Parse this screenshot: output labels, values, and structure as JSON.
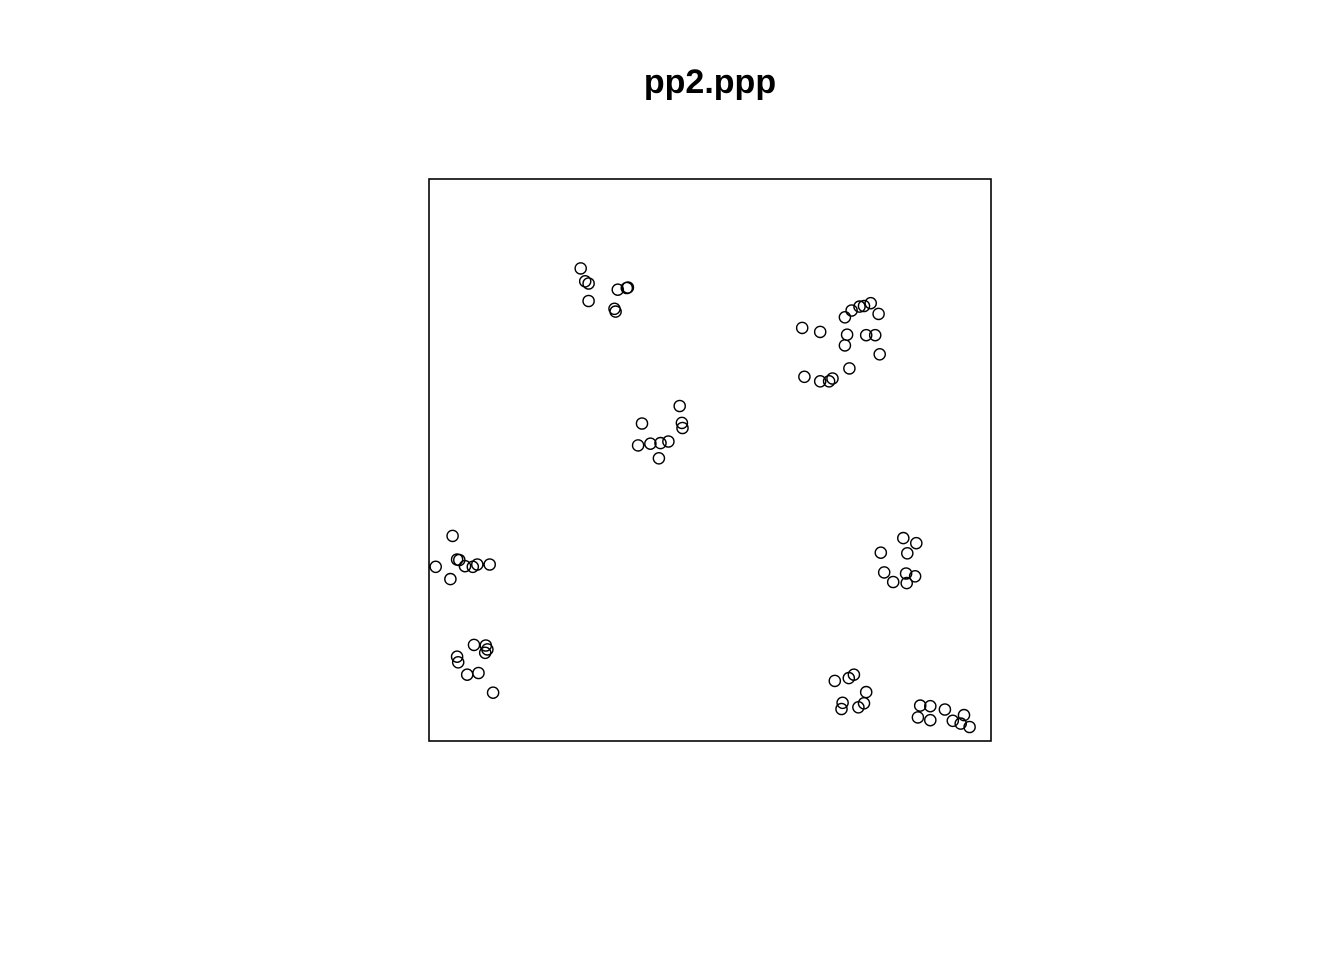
{
  "chart_data": {
    "type": "scatter",
    "title": "pp2.ppp",
    "xlabel": "",
    "ylabel": "",
    "xlim": [
      0,
      1
    ],
    "ylim": [
      0,
      1
    ],
    "marker": "open-circle",
    "grid": false,
    "legend": "none",
    "colors": {
      "point_stroke": "#000000",
      "frame": "#000000",
      "background": "#ffffff"
    },
    "points": [
      [
        0.27,
        0.841
      ],
      [
        0.278,
        0.818
      ],
      [
        0.284,
        0.814
      ],
      [
        0.284,
        0.783
      ],
      [
        0.336,
        0.803
      ],
      [
        0.352,
        0.806
      ],
      [
        0.354,
        0.807
      ],
      [
        0.33,
        0.769
      ],
      [
        0.332,
        0.764
      ],
      [
        0.664,
        0.735
      ],
      [
        0.696,
        0.728
      ],
      [
        0.74,
        0.754
      ],
      [
        0.752,
        0.766
      ],
      [
        0.766,
        0.773
      ],
      [
        0.774,
        0.774
      ],
      [
        0.786,
        0.779
      ],
      [
        0.8,
        0.76
      ],
      [
        0.744,
        0.723
      ],
      [
        0.74,
        0.704
      ],
      [
        0.778,
        0.722
      ],
      [
        0.794,
        0.722
      ],
      [
        0.802,
        0.688
      ],
      [
        0.748,
        0.663
      ],
      [
        0.668,
        0.648
      ],
      [
        0.696,
        0.64
      ],
      [
        0.712,
        0.64
      ],
      [
        0.718,
        0.645
      ],
      [
        0.379,
        0.565
      ],
      [
        0.446,
        0.596
      ],
      [
        0.45,
        0.566
      ],
      [
        0.451,
        0.557
      ],
      [
        0.372,
        0.526
      ],
      [
        0.394,
        0.529
      ],
      [
        0.412,
        0.53
      ],
      [
        0.426,
        0.533
      ],
      [
        0.409,
        0.503
      ],
      [
        0.042,
        0.365
      ],
      [
        0.05,
        0.323
      ],
      [
        0.054,
        0.322
      ],
      [
        0.012,
        0.31
      ],
      [
        0.038,
        0.288
      ],
      [
        0.064,
        0.311
      ],
      [
        0.078,
        0.31
      ],
      [
        0.086,
        0.314
      ],
      [
        0.108,
        0.314
      ],
      [
        0.844,
        0.361
      ],
      [
        0.867,
        0.352
      ],
      [
        0.851,
        0.334
      ],
      [
        0.804,
        0.335
      ],
      [
        0.81,
        0.3
      ],
      [
        0.849,
        0.298
      ],
      [
        0.865,
        0.293
      ],
      [
        0.826,
        0.283
      ],
      [
        0.85,
        0.281
      ],
      [
        0.08,
        0.171
      ],
      [
        0.101,
        0.17
      ],
      [
        0.104,
        0.163
      ],
      [
        0.1,
        0.157
      ],
      [
        0.05,
        0.15
      ],
      [
        0.052,
        0.14
      ],
      [
        0.068,
        0.118
      ],
      [
        0.088,
        0.121
      ],
      [
        0.114,
        0.086
      ],
      [
        0.722,
        0.107
      ],
      [
        0.747,
        0.112
      ],
      [
        0.756,
        0.118
      ],
      [
        0.778,
        0.087
      ],
      [
        0.736,
        0.068
      ],
      [
        0.734,
        0.057
      ],
      [
        0.774,
        0.067
      ],
      [
        0.764,
        0.06
      ],
      [
        0.874,
        0.063
      ],
      [
        0.892,
        0.062
      ],
      [
        0.918,
        0.056
      ],
      [
        0.87,
        0.042
      ],
      [
        0.892,
        0.037
      ],
      [
        0.952,
        0.046
      ],
      [
        0.932,
        0.036
      ],
      [
        0.946,
        0.031
      ],
      [
        0.962,
        0.025
      ]
    ]
  }
}
